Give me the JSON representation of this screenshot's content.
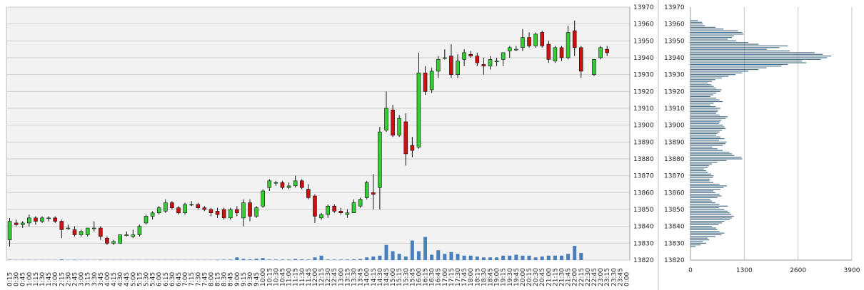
{
  "colors": {
    "plot_bg": "#f2f2f2",
    "grid": "#cfcfcf",
    "up": "#33cc33",
    "down": "#cc1111",
    "wick": "#111111",
    "volume": "#4a7fbf",
    "profile": "#4a6f86"
  },
  "chart_data": [
    {
      "type": "candlestick",
      "title": "",
      "xlabel": "",
      "ylabel": "",
      "ylim": [
        13820,
        13970
      ],
      "y_ticks": [
        13820,
        13830,
        13840,
        13850,
        13860,
        13870,
        13880,
        13890,
        13900,
        13910,
        13920,
        13930,
        13940,
        13950,
        13960,
        13970
      ],
      "grid": true,
      "x_labels": [
        "0:15",
        "0:30",
        "0:45",
        "1:00",
        "1:15",
        "1:30",
        "1:45",
        "2:00",
        "2:15",
        "2:30",
        "2:45",
        "3:00",
        "3:15",
        "3:30",
        "3:45",
        "4:00",
        "4:15",
        "4:30",
        "4:45",
        "5:00",
        "5:15",
        "5:30",
        "5:45",
        "6:00",
        "6:15",
        "6:30",
        "6:45",
        "7:00",
        "7:15",
        "7:30",
        "7:45",
        "8:00",
        "8:15",
        "8:30",
        "8:45",
        "9:00",
        "9:15",
        "9:30",
        "9:45",
        "10:00",
        "10:15",
        "10:30",
        "10:45",
        "11:00",
        "11:15",
        "11:30",
        "11:45",
        "12:00",
        "12:15",
        "12:30",
        "12:45",
        "13:00",
        "13:15",
        "13:30",
        "13:45",
        "14:00",
        "14:15",
        "14:30",
        "14:45",
        "15:00",
        "15:15",
        "15:30",
        "15:45",
        "16:00",
        "16:15",
        "16:30",
        "16:45",
        "17:00",
        "17:15",
        "17:30",
        "17:45",
        "18:00",
        "18:15",
        "18:30",
        "18:45",
        "19:00",
        "19:15",
        "19:30",
        "19:45",
        "20:00",
        "20:15",
        "20:30",
        "20:45",
        "21:00",
        "21:15",
        "21:30",
        "21:45",
        "22:00",
        "22:15",
        "22:30",
        "22:45",
        "23:00",
        "23:15",
        "23:30",
        "23:45",
        "0:00"
      ],
      "candles": [
        {
          "o": 13832,
          "h": 13845,
          "l": 13828,
          "c": 13843
        },
        {
          "o": 13842,
          "h": 13844,
          "l": 13840,
          "c": 13841
        },
        {
          "o": 13841,
          "h": 13843,
          "l": 13839,
          "c": 13842
        },
        {
          "o": 13842,
          "h": 13847,
          "l": 13840,
          "c": 13845
        },
        {
          "o": 13845,
          "h": 13846,
          "l": 13841,
          "c": 13843
        },
        {
          "o": 13843,
          "h": 13846,
          "l": 13842,
          "c": 13845
        },
        {
          "o": 13845,
          "h": 13846,
          "l": 13843,
          "c": 13845
        },
        {
          "o": 13845,
          "h": 13846,
          "l": 13842,
          "c": 13843
        },
        {
          "o": 13843,
          "h": 13844,
          "l": 13833,
          "c": 13838
        },
        {
          "o": 13839,
          "h": 13841,
          "l": 13838,
          "c": 13839
        },
        {
          "o": 13838,
          "h": 13840,
          "l": 13834,
          "c": 13835
        },
        {
          "o": 13835,
          "h": 13838,
          "l": 13834,
          "c": 13837
        },
        {
          "o": 13835,
          "h": 13839,
          "l": 13834,
          "c": 13839
        },
        {
          "o": 13839,
          "h": 13843,
          "l": 13837,
          "c": 13839
        },
        {
          "o": 13839,
          "h": 13840,
          "l": 13832,
          "c": 13834
        },
        {
          "o": 13833,
          "h": 13834,
          "l": 13829,
          "c": 13830
        },
        {
          "o": 13830,
          "h": 13832,
          "l": 13829,
          "c": 13831
        },
        {
          "o": 13830,
          "h": 13835,
          "l": 13830,
          "c": 13835
        },
        {
          "o": 13835,
          "h": 13837,
          "l": 13834,
          "c": 13835
        },
        {
          "o": 13834,
          "h": 13838,
          "l": 13833,
          "c": 13835
        },
        {
          "o": 13835,
          "h": 13841,
          "l": 13834,
          "c": 13840
        },
        {
          "o": 13842,
          "h": 13847,
          "l": 13841,
          "c": 13846
        },
        {
          "o": 13846,
          "h": 13849,
          "l": 13844,
          "c": 13848
        },
        {
          "o": 13848,
          "h": 13852,
          "l": 13847,
          "c": 13851
        },
        {
          "o": 13849,
          "h": 13856,
          "l": 13848,
          "c": 13854
        },
        {
          "o": 13854,
          "h": 13855,
          "l": 13850,
          "c": 13851
        },
        {
          "o": 13851,
          "h": 13852,
          "l": 13847,
          "c": 13848
        },
        {
          "o": 13848,
          "h": 13854,
          "l": 13847,
          "c": 13853
        },
        {
          "o": 13853,
          "h": 13855,
          "l": 13852,
          "c": 13853
        },
        {
          "o": 13853,
          "h": 13854,
          "l": 13850,
          "c": 13851
        },
        {
          "o": 13851,
          "h": 13852,
          "l": 13849,
          "c": 13850
        },
        {
          "o": 13850,
          "h": 13851,
          "l": 13846,
          "c": 13848
        },
        {
          "o": 13849,
          "h": 13851,
          "l": 13845,
          "c": 13847
        },
        {
          "o": 13850,
          "h": 13851,
          "l": 13844,
          "c": 13845
        },
        {
          "o": 13845,
          "h": 13851,
          "l": 13844,
          "c": 13850
        },
        {
          "o": 13850,
          "h": 13852,
          "l": 13846,
          "c": 13848
        },
        {
          "o": 13845,
          "h": 13856,
          "l": 13840,
          "c": 13854
        },
        {
          "o": 13854,
          "h": 13856,
          "l": 13843,
          "c": 13846
        },
        {
          "o": 13846,
          "h": 13852,
          "l": 13845,
          "c": 13851
        },
        {
          "o": 13852,
          "h": 13862,
          "l": 13851,
          "c": 13861
        },
        {
          "o": 13863,
          "h": 13868,
          "l": 13861,
          "c": 13867
        },
        {
          "o": 13866,
          "h": 13867,
          "l": 13864,
          "c": 13866
        },
        {
          "o": 13866,
          "h": 13867,
          "l": 13862,
          "c": 13863
        },
        {
          "o": 13863,
          "h": 13866,
          "l": 13862,
          "c": 13864
        },
        {
          "o": 13864,
          "h": 13870,
          "l": 13863,
          "c": 13867
        },
        {
          "o": 13867,
          "h": 13868,
          "l": 13862,
          "c": 13863
        },
        {
          "o": 13862,
          "h": 13865,
          "l": 13856,
          "c": 13857
        },
        {
          "o": 13858,
          "h": 13859,
          "l": 13842,
          "c": 13846
        },
        {
          "o": 13845,
          "h": 13848,
          "l": 13844,
          "c": 13847
        },
        {
          "o": 13847,
          "h": 13853,
          "l": 13845,
          "c": 13852
        },
        {
          "o": 13852,
          "h": 13853,
          "l": 13848,
          "c": 13849
        },
        {
          "o": 13849,
          "h": 13851,
          "l": 13847,
          "c": 13848
        },
        {
          "o": 13847,
          "h": 13850,
          "l": 13845,
          "c": 13848
        },
        {
          "o": 13848,
          "h": 13856,
          "l": 13848,
          "c": 13854
        },
        {
          "o": 13852,
          "h": 13857,
          "l": 13851,
          "c": 13856
        },
        {
          "o": 13857,
          "h": 13867,
          "l": 13856,
          "c": 13866
        },
        {
          "o": 13860,
          "h": 13871,
          "l": 13850,
          "c": 13859
        },
        {
          "o": 13863,
          "h": 13899,
          "l": 13850,
          "c": 13896
        },
        {
          "o": 13897,
          "h": 13920,
          "l": 13896,
          "c": 13910
        },
        {
          "o": 13909,
          "h": 13912,
          "l": 13893,
          "c": 13894
        },
        {
          "o": 13894,
          "h": 13906,
          "l": 13893,
          "c": 13904
        },
        {
          "o": 13902,
          "h": 13907,
          "l": 13876,
          "c": 13883
        },
        {
          "o": 13888,
          "h": 13893,
          "l": 13881,
          "c": 13885
        },
        {
          "o": 13887,
          "h": 13943,
          "l": 13886,
          "c": 13931
        },
        {
          "o": 13931,
          "h": 13935,
          "l": 13918,
          "c": 13920
        },
        {
          "o": 13921,
          "h": 13934,
          "l": 13919,
          "c": 13932
        },
        {
          "o": 13932,
          "h": 13941,
          "l": 13928,
          "c": 13939
        },
        {
          "o": 13940,
          "h": 13945,
          "l": 13939,
          "c": 13940
        },
        {
          "o": 13941,
          "h": 13948,
          "l": 13928,
          "c": 13930
        },
        {
          "o": 13930,
          "h": 13942,
          "l": 13928,
          "c": 13938
        },
        {
          "o": 13939,
          "h": 13945,
          "l": 13935,
          "c": 13943
        },
        {
          "o": 13942,
          "h": 13944,
          "l": 13940,
          "c": 13941
        },
        {
          "o": 13941,
          "h": 13943,
          "l": 13935,
          "c": 13937
        },
        {
          "o": 13936,
          "h": 13940,
          "l": 13930,
          "c": 13935
        },
        {
          "o": 13935,
          "h": 13941,
          "l": 13933,
          "c": 13939
        },
        {
          "o": 13938,
          "h": 13940,
          "l": 13935,
          "c": 13938
        },
        {
          "o": 13939,
          "h": 13943,
          "l": 13935,
          "c": 13943
        },
        {
          "o": 13944,
          "h": 13947,
          "l": 13940,
          "c": 13946
        },
        {
          "o": 13945,
          "h": 13947,
          "l": 13944,
          "c": 13945
        },
        {
          "o": 13946,
          "h": 13957,
          "l": 13944,
          "c": 13952
        },
        {
          "o": 13952,
          "h": 13955,
          "l": 13946,
          "c": 13947
        },
        {
          "o": 13947,
          "h": 13955,
          "l": 13946,
          "c": 13954
        },
        {
          "o": 13955,
          "h": 13956,
          "l": 13946,
          "c": 13947
        },
        {
          "o": 13948,
          "h": 13950,
          "l": 13937,
          "c": 13939
        },
        {
          "o": 13938,
          "h": 13947,
          "l": 13937,
          "c": 13946
        },
        {
          "o": 13946,
          "h": 13947,
          "l": 13938,
          "c": 13940
        },
        {
          "o": 13940,
          "h": 13959,
          "l": 13939,
          "c": 13955
        },
        {
          "o": 13956,
          "h": 13962,
          "l": 13941,
          "c": 13946
        },
        {
          "o": 13946,
          "h": 13947,
          "l": 13928,
          "c": 13932
        },
        null,
        {
          "o": 13930,
          "h": 13939,
          "l": 13929,
          "c": 13939
        },
        {
          "o": 13940,
          "h": 13947,
          "l": 13939,
          "c": 13946
        },
        {
          "o": 13945,
          "h": 13947,
          "l": 13941,
          "c": 13943
        },
        null,
        null,
        null
      ],
      "volume": [
        0.2,
        0.1,
        0.1,
        0.1,
        0.1,
        0.1,
        0.1,
        0.1,
        0.4,
        0.1,
        0.2,
        0.1,
        0.1,
        0.1,
        0.2,
        0.1,
        0.1,
        0.1,
        0.1,
        0.1,
        0.1,
        0.1,
        0.1,
        0.1,
        0.1,
        0.1,
        0.1,
        0.1,
        0.1,
        0.1,
        0.1,
        0.1,
        0.2,
        0.2,
        0.3,
        1.5,
        0.7,
        0.4,
        0.8,
        1.1,
        0.3,
        0.3,
        0.3,
        0.3,
        0.6,
        0.4,
        0.3,
        1.5,
        2.5,
        0.3,
        0.3,
        0.3,
        0.3,
        0.4,
        0.6,
        1.5,
        2.0,
        2.5,
        8.5,
        5.0,
        3.5,
        2.0,
        11.0,
        5.0,
        13.0,
        3.0,
        5.5,
        3.5,
        4.5,
        3.5,
        2.5,
        2.5,
        2.0,
        1.5,
        1.5,
        1.5,
        2.5,
        2.5,
        3.0,
        2.5,
        2.5,
        1.5,
        2.0,
        2.5,
        2.5,
        2.5,
        3.5,
        8.0,
        4.0,
        0,
        0,
        0,
        0,
        0,
        0,
        0
      ]
    },
    {
      "type": "bar",
      "orientation": "horizontal",
      "title": "",
      "xlabel": "",
      "ylabel": "",
      "xlim": [
        0,
        3900
      ],
      "x_ticks": [
        0,
        1300,
        2600,
        3900
      ],
      "ylim": [
        13820,
        13970
      ],
      "y_ticks": [
        13820,
        13830,
        13840,
        13850,
        13860,
        13870,
        13880,
        13890,
        13900,
        13910,
        13920,
        13930,
        13940,
        13950,
        13960,
        13970
      ],
      "price_levels": [
        13828,
        13829,
        13830,
        13831,
        13832,
        13833,
        13834,
        13835,
        13836,
        13837,
        13838,
        13839,
        13840,
        13841,
        13842,
        13843,
        13844,
        13845,
        13846,
        13847,
        13848,
        13849,
        13850,
        13851,
        13852,
        13853,
        13854,
        13855,
        13856,
        13857,
        13858,
        13859,
        13860,
        13861,
        13862,
        13863,
        13864,
        13865,
        13866,
        13867,
        13868,
        13869,
        13870,
        13871,
        13872,
        13873,
        13874,
        13875,
        13876,
        13877,
        13878,
        13879,
        13880,
        13881,
        13882,
        13883,
        13884,
        13885,
        13886,
        13887,
        13888,
        13889,
        13890,
        13891,
        13892,
        13893,
        13894,
        13895,
        13896,
        13897,
        13898,
        13899,
        13900,
        13901,
        13902,
        13903,
        13904,
        13905,
        13906,
        13907,
        13908,
        13909,
        13910,
        13911,
        13912,
        13913,
        13914,
        13915,
        13916,
        13917,
        13918,
        13919,
        13920,
        13921,
        13922,
        13923,
        13924,
        13925,
        13926,
        13927,
        13928,
        13929,
        13930,
        13931,
        13932,
        13933,
        13934,
        13935,
        13936,
        13937,
        13938,
        13939,
        13940,
        13941,
        13942,
        13943,
        13944,
        13945,
        13946,
        13947,
        13948,
        13949,
        13950,
        13951,
        13952,
        13953,
        13954,
        13955,
        13956,
        13957,
        13958,
        13959,
        13960,
        13961,
        13962
      ],
      "values": [
        120,
        250,
        380,
        300,
        450,
        420,
        600,
        750,
        820,
        700,
        650,
        620,
        520,
        680,
        760,
        820,
        950,
        1000,
        1050,
        990,
        950,
        900,
        820,
        690,
        900,
        700,
        600,
        520,
        480,
        650,
        750,
        700,
        600,
        550,
        720,
        800,
        880,
        700,
        550,
        460,
        470,
        540,
        560,
        500,
        420,
        380,
        320,
        420,
        450,
        520,
        650,
        870,
        1250,
        1230,
        1060,
        1000,
        940,
        780,
        650,
        530,
        780,
        850,
        870,
        690,
        820,
        720,
        620,
        650,
        700,
        760,
        850,
        820,
        780,
        690,
        720,
        750,
        850,
        900,
        700,
        620,
        650,
        670,
        720,
        600,
        480,
        560,
        780,
        700,
        620,
        480,
        550,
        620,
        720,
        750,
        620,
        560,
        500,
        420,
        520,
        600,
        760,
        920,
        1090,
        1250,
        1400,
        1640,
        1840,
        2200,
        2350,
        2800,
        2700,
        3150,
        3300,
        3400,
        3200,
        3000,
        2400,
        1850,
        2150,
        2350,
        1650,
        1400,
        1100,
        900,
        1000,
        1050,
        1280,
        1250,
        1150,
        800,
        600,
        350,
        300,
        280,
        180,
        120,
        60
      ]
    }
  ]
}
